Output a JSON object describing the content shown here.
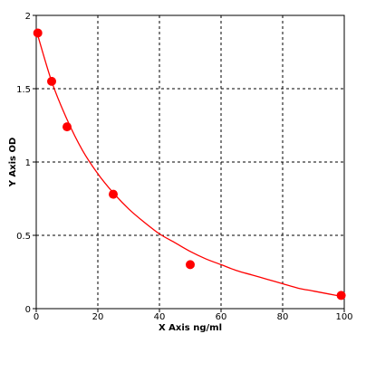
{
  "chart_data": {
    "type": "scatter",
    "title": "",
    "xlabel": "X Axis ng/ml",
    "ylabel": "Y Axis OD",
    "xlim": [
      0,
      100
    ],
    "ylim": [
      0,
      2
    ],
    "x_ticks": [
      0,
      20,
      40,
      60,
      80,
      100
    ],
    "y_ticks": [
      0,
      0.5,
      1,
      1.5,
      2
    ],
    "x_tick_labels": [
      "0",
      "20",
      "40",
      "60",
      "80",
      "100"
    ],
    "y_tick_labels": [
      "0",
      "0.5",
      "1",
      "1.5",
      "2"
    ],
    "grid": true,
    "legend": "none",
    "series": [
      {
        "kind": "points",
        "x": [
          0.5,
          5,
          10,
          25,
          50,
          99
        ],
        "y": [
          1.88,
          1.55,
          1.24,
          0.78,
          0.3,
          0.09
        ]
      },
      {
        "kind": "fit-curve",
        "x": [
          0,
          5,
          10,
          15,
          20,
          25,
          30,
          35,
          40,
          45,
          50,
          55,
          60,
          65,
          70,
          75,
          80,
          85,
          90,
          95,
          100
        ],
        "y": [
          1.9,
          1.55,
          1.29,
          1.08,
          0.92,
          0.79,
          0.68,
          0.59,
          0.51,
          0.45,
          0.39,
          0.34,
          0.3,
          0.26,
          0.23,
          0.2,
          0.17,
          0.14,
          0.12,
          0.1,
          0.08
        ]
      }
    ],
    "colors": {
      "series": "#ff0000",
      "axes": "#000000",
      "grid": "#000000",
      "background": "#ffffff"
    }
  }
}
